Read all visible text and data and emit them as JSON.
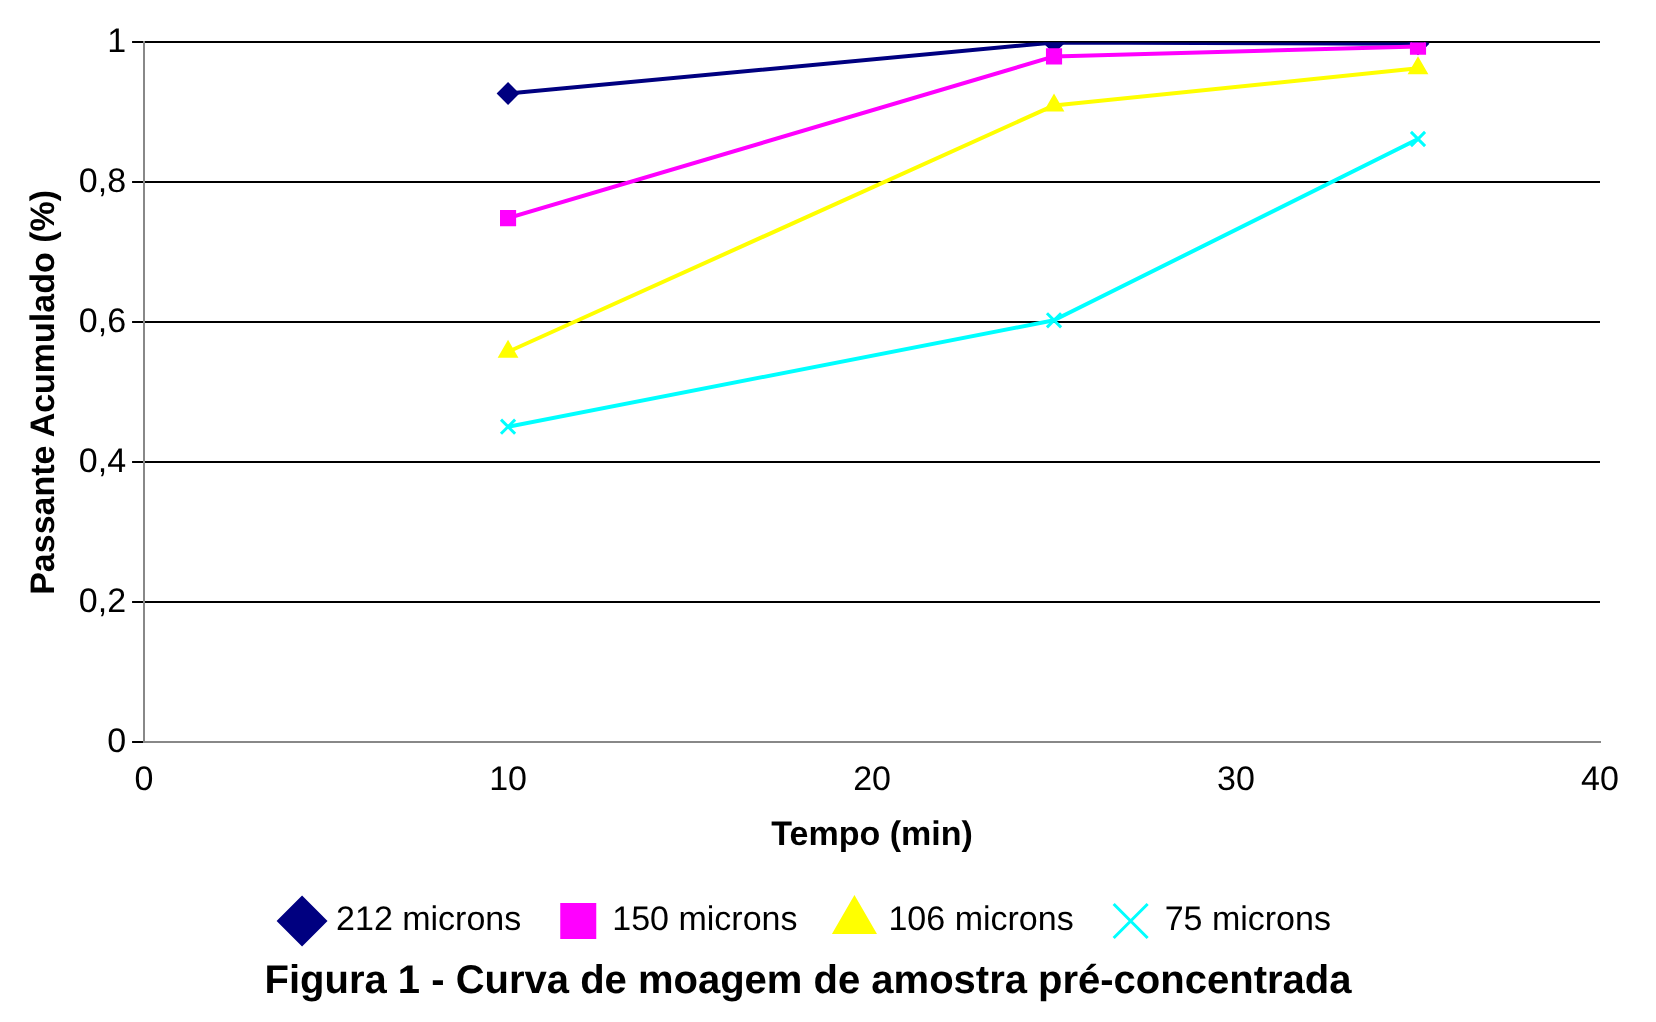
{
  "chart_data": {
    "type": "line",
    "title": "Figura 1 - Curva de moagem de amostra pré-concentrada",
    "xlabel": "Tempo (min)",
    "ylabel": "Passante Acumulado (%)",
    "x": [
      10,
      25,
      35
    ],
    "series": [
      {
        "name": "212 microns",
        "color": "#000080",
        "marker": "diamond",
        "values": [
          0.927,
          1.0,
          0.998
        ]
      },
      {
        "name": "150 microns",
        "color": "#ff00ff",
        "marker": "square",
        "values": [
          0.749,
          0.98,
          0.994
        ]
      },
      {
        "name": "106 microns",
        "color": "#ffff00",
        "marker": "triangle",
        "values": [
          0.558,
          0.91,
          0.963
        ]
      },
      {
        "name": "75 microns",
        "color": "#00ffff",
        "marker": "cross",
        "values": [
          0.451,
          0.603,
          0.862
        ]
      }
    ],
    "xlim": [
      0,
      40
    ],
    "xticks": [
      0,
      10,
      20,
      30,
      40
    ],
    "ylim": [
      0,
      1
    ],
    "yticks": [
      0,
      {
        "value": 0.2,
        "label": "0,2"
      },
      {
        "value": 0.4,
        "label": "0,4"
      },
      {
        "value": 0.6,
        "label": "0,6"
      },
      {
        "value": 0.8,
        "label": "0,8"
      },
      1
    ],
    "grid": "y",
    "legend": "bottom"
  }
}
